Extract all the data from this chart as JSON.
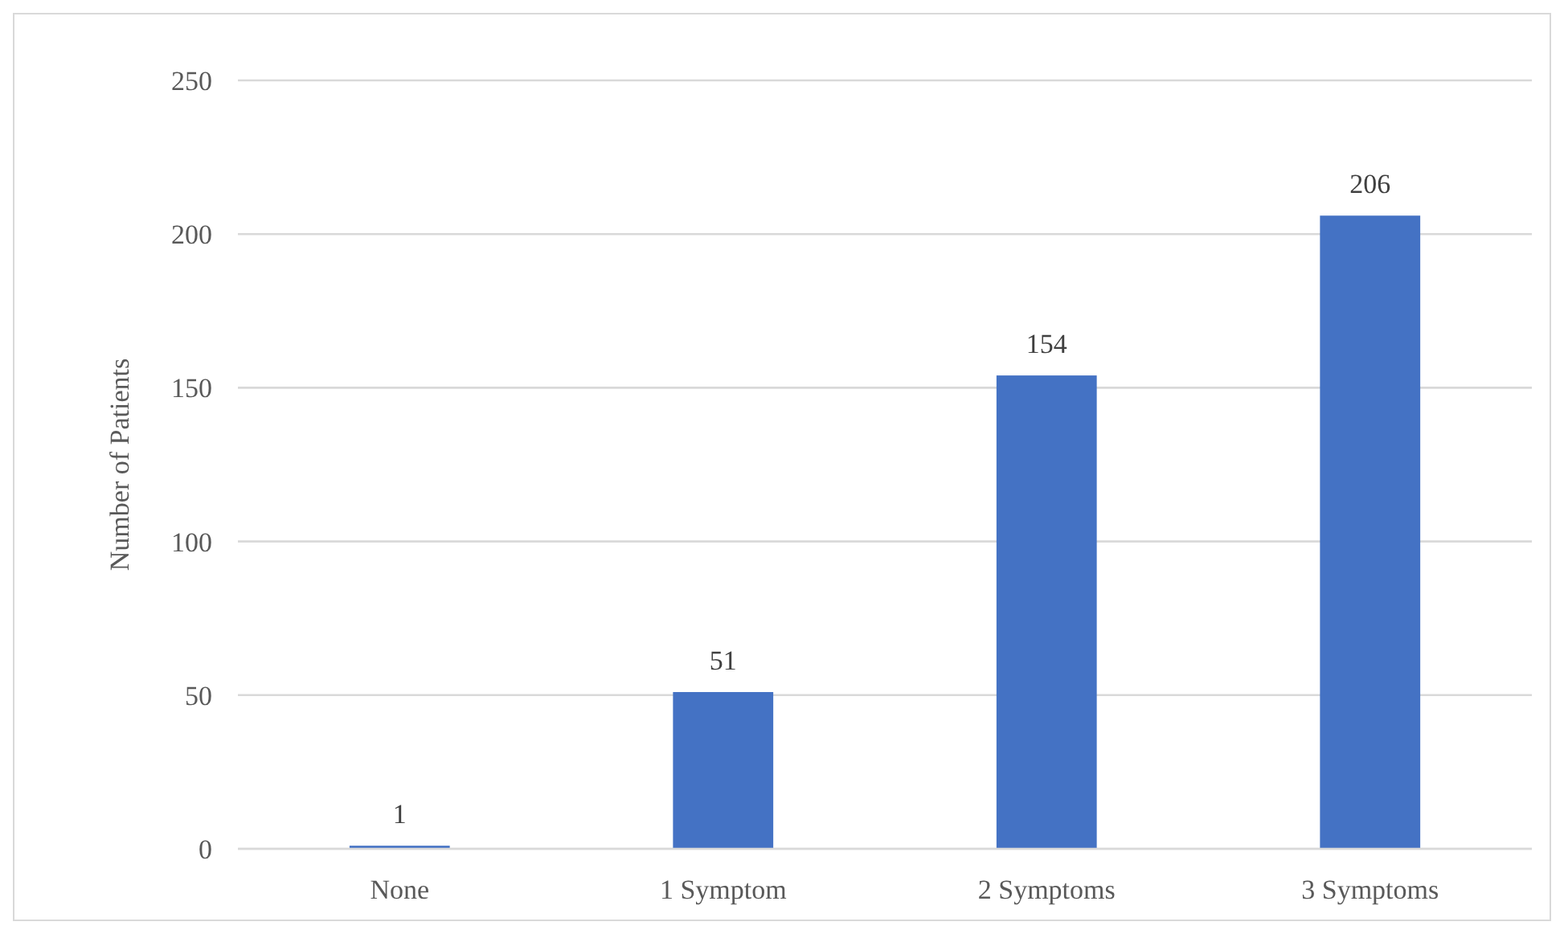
{
  "chart_data": {
    "type": "bar",
    "ylabel": "Number of Patients",
    "categories": [
      "None",
      "1 Symptom",
      "2 Symptoms",
      "3 Symptoms"
    ],
    "values": [
      1,
      51,
      154,
      206
    ],
    "color": "#4472c4",
    "ylim": [
      0,
      250
    ],
    "yticks": [
      0,
      50,
      100,
      150,
      200,
      250
    ],
    "grid": "y",
    "data_labels": true
  }
}
